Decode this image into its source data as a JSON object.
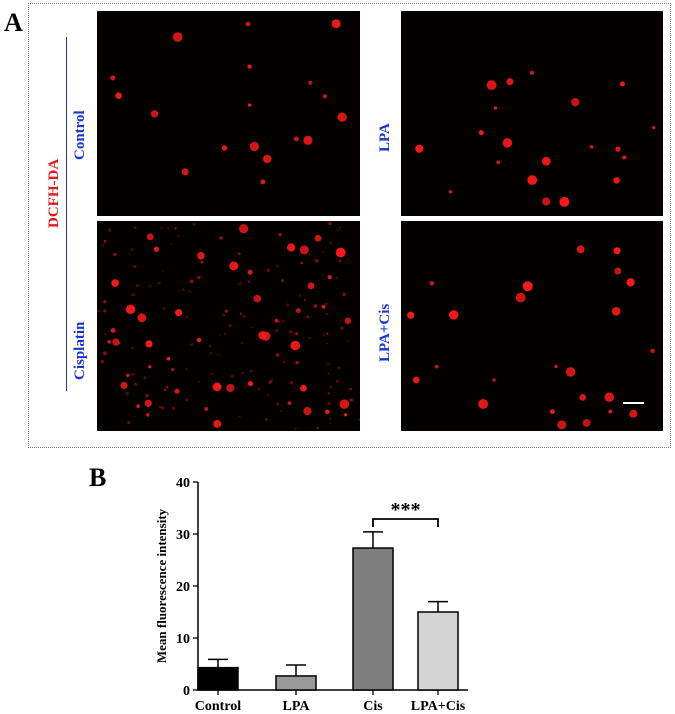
{
  "panel_a": {
    "letter": "A",
    "stain_label": "DCFH-DA",
    "images": [
      {
        "label": "Control",
        "cell_count": 18,
        "seed": 11
      },
      {
        "label": "LPA",
        "cell_count": 20,
        "seed": 23
      },
      {
        "label": "Cisplatin",
        "cell_count": 48,
        "seed": 37
      },
      {
        "label": "LPA+Cis",
        "cell_count": 24,
        "seed": 51
      }
    ],
    "colors": {
      "cell": "#ff1a1a",
      "background": "#050000",
      "label_blue": "#1a33d6",
      "label_red": "#e01b1b"
    }
  },
  "panel_b": {
    "letter": "B",
    "significance": "***"
  },
  "chart_data": {
    "type": "bar",
    "categories": [
      "Control",
      "LPA",
      "Cis",
      "LPA+Cis"
    ],
    "values": [
      4.3,
      2.7,
      27.3,
      15.0
    ],
    "errors": [
      1.6,
      2.1,
      3.1,
      2.0
    ],
    "colors": [
      "#000000",
      "#9a9a9a",
      "#7f7f7f",
      "#d4d4d4"
    ],
    "title": "",
    "xlabel": "",
    "ylabel": "Mean fluorescence intensity",
    "ylim": [
      0,
      40
    ],
    "yticks": [
      "0",
      "10",
      "20",
      "30",
      "40"
    ],
    "significance": {
      "between": [
        "Cis",
        "LPA+Cis"
      ],
      "label": "***"
    }
  }
}
